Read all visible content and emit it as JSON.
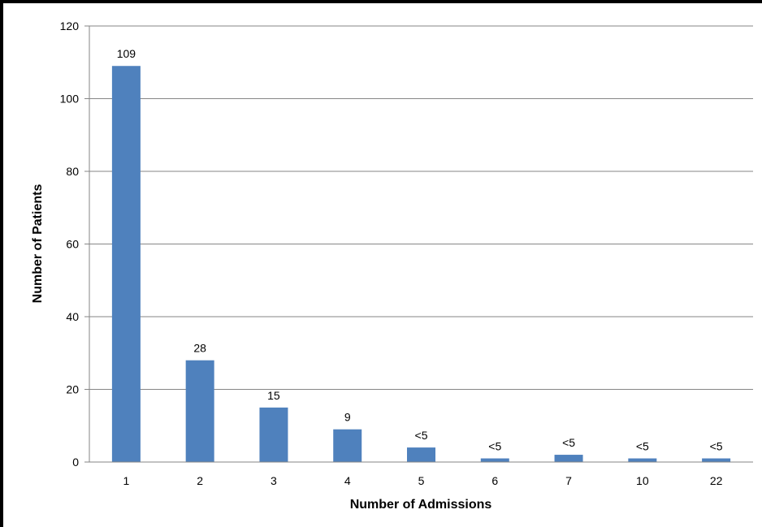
{
  "chart_data": {
    "type": "bar",
    "title": "",
    "xlabel": "Number of Admissions",
    "ylabel": "Number of Patients",
    "categories": [
      "1",
      "2",
      "3",
      "4",
      "5",
      "6",
      "7",
      "10",
      "22"
    ],
    "values": [
      109,
      28,
      15,
      9,
      4,
      1,
      2,
      1,
      1
    ],
    "data_labels": [
      "109",
      "28",
      "15",
      "9",
      "<5",
      "<5",
      "<5",
      "<5",
      "<5"
    ],
    "ylim": [
      0,
      120
    ],
    "yticks": [
      0,
      20,
      40,
      60,
      80,
      100,
      120
    ],
    "grid": true,
    "legend": "none",
    "bar_color": "#4F81BD",
    "grid_color": "#868686"
  }
}
